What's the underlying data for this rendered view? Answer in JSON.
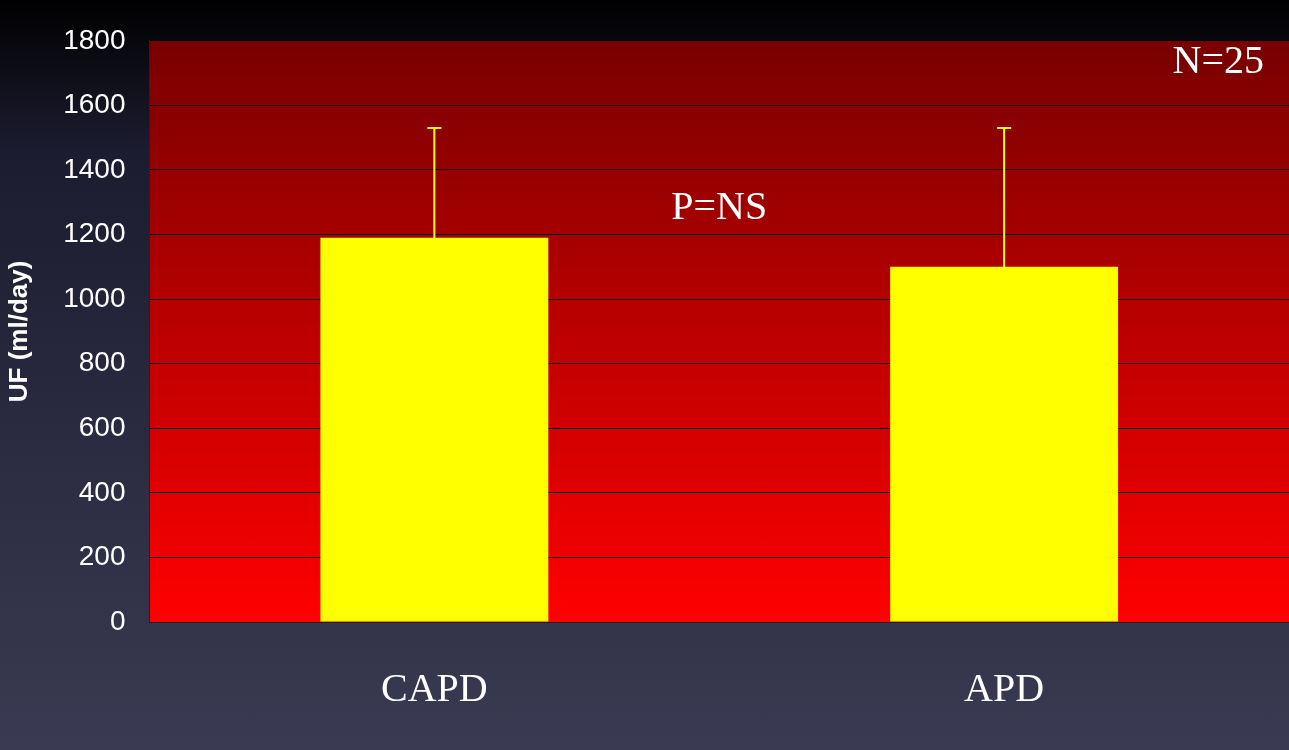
{
  "chart_data": {
    "type": "bar",
    "ylabel": "UF (ml/day)",
    "categories": [
      "CAPD",
      "APD"
    ],
    "values": [
      1190,
      1100
    ],
    "errors": [
      340,
      430
    ],
    "color": "#ffff00",
    "ylim": [
      0,
      1800
    ],
    "yticks": [
      0,
      200,
      400,
      600,
      800,
      1000,
      1200,
      1400,
      1600,
      1800
    ],
    "grid": "y",
    "annotations": [
      "N=25",
      "P=NS"
    ]
  }
}
